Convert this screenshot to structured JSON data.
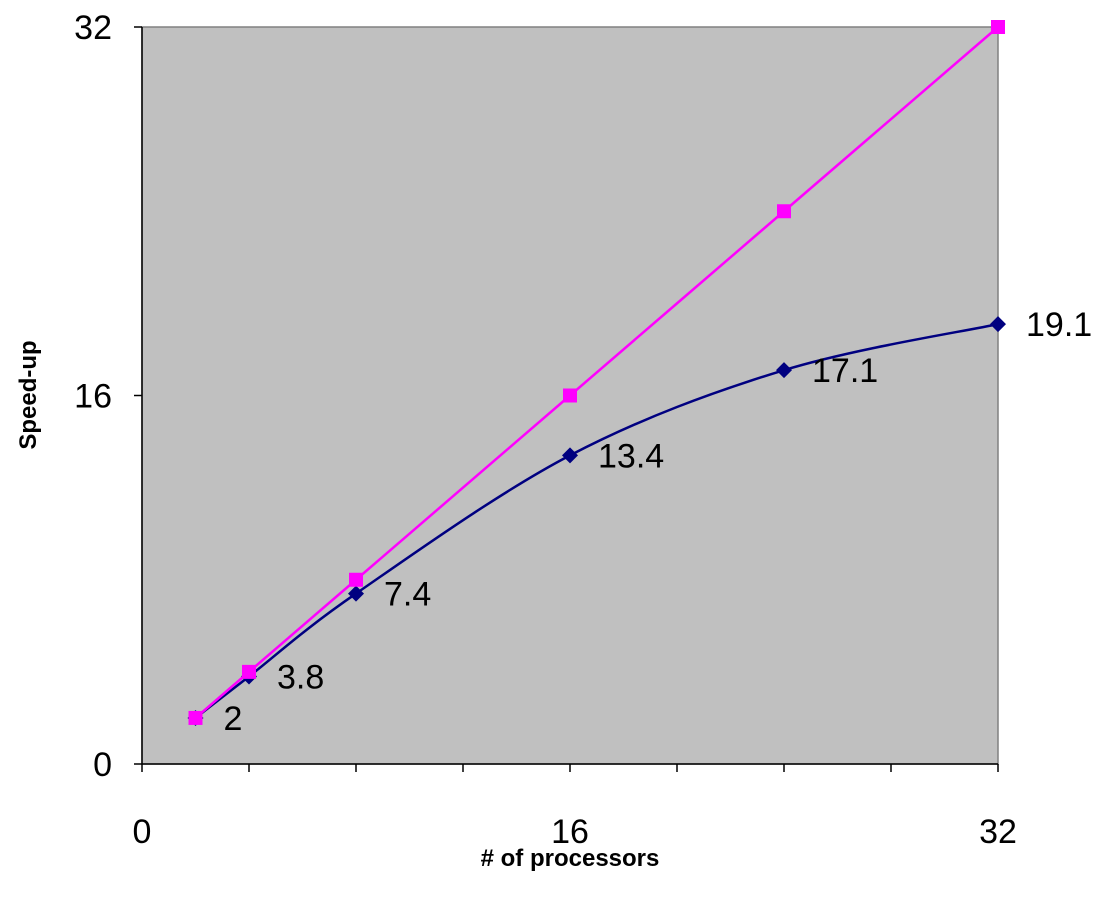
{
  "chart_data": {
    "type": "line",
    "title": "",
    "xlabel": "# of processors",
    "ylabel": "Speed-up",
    "xlim": [
      0,
      32
    ],
    "ylim": [
      0,
      32
    ],
    "x_ticks": [
      0,
      16,
      32
    ],
    "y_ticks": [
      0,
      16,
      32
    ],
    "x_tick_labels": [
      "0",
      "16",
      "32"
    ],
    "y_tick_labels": [
      "0",
      "16",
      "32"
    ],
    "grid": false,
    "legend": "none",
    "plot_background": "#c0c0c0",
    "series": [
      {
        "color": "#ff00ff",
        "marker": "square",
        "x": [
          2,
          4,
          8,
          16,
          24,
          32
        ],
        "y": [
          2,
          4,
          8,
          16,
          24,
          32
        ],
        "labels": [
          "",
          "",
          "",
          "",
          "",
          ""
        ]
      },
      {
        "color": "#000080",
        "marker": "diamond",
        "x": [
          2,
          4,
          8,
          16,
          24,
          32
        ],
        "y": [
          2,
          3.8,
          7.4,
          13.4,
          17.1,
          19.1
        ],
        "labels": [
          "2",
          "3.8",
          "7.4",
          "13.4",
          "17.1",
          "19.1"
        ]
      }
    ]
  }
}
